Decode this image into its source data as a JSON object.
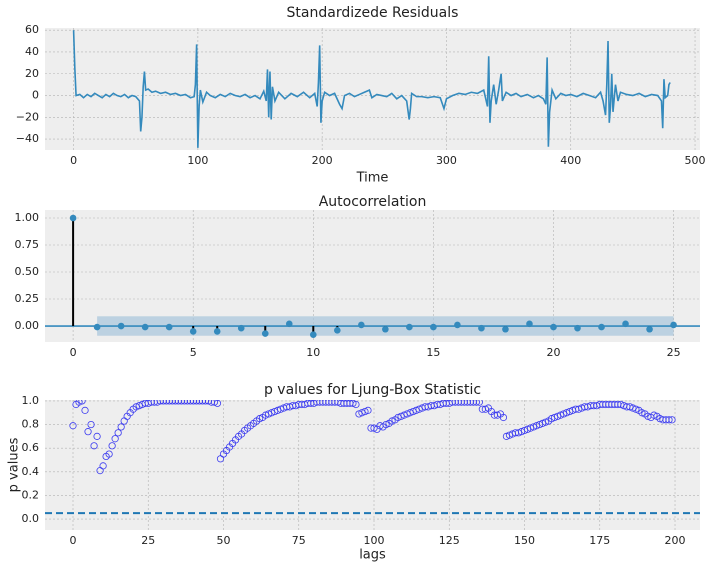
{
  "chart_data": [
    {
      "type": "line",
      "title": "Standardizede Residuals",
      "x_label": "Time",
      "color": "#348ABD",
      "grid": true,
      "xlim": [
        -23,
        504
      ],
      "ylim": [
        -50,
        62
      ],
      "xticks": [
        0,
        100,
        200,
        300,
        400,
        500
      ],
      "yticks": [
        {
          "value": -40,
          "label": "−40"
        },
        {
          "value": -20,
          "label": "−20"
        },
        0,
        20,
        40,
        60
      ],
      "x": [
        0,
        1,
        2,
        5,
        8,
        11,
        14,
        17,
        20,
        23,
        26,
        29,
        32,
        35,
        38,
        41,
        44,
        47,
        50,
        53,
        54,
        55,
        56,
        57,
        58,
        60,
        63,
        66,
        70,
        74,
        78,
        82,
        86,
        90,
        94,
        97,
        98,
        99,
        100,
        101,
        102,
        104,
        107,
        110,
        114,
        118,
        122,
        126,
        130,
        134,
        138,
        142,
        146,
        150,
        153,
        155,
        156,
        157,
        158,
        159,
        160,
        162,
        165,
        170,
        175,
        180,
        185,
        190,
        194,
        196,
        197,
        198,
        199,
        200,
        202,
        206,
        210,
        214,
        216,
        218,
        222,
        226,
        230,
        234,
        238,
        240,
        244,
        248,
        252,
        256,
        260,
        264,
        268,
        270,
        271,
        272,
        276,
        280,
        285,
        290,
        295,
        298,
        300,
        305,
        310,
        315,
        320,
        325,
        330,
        333,
        334,
        335,
        336,
        338,
        340,
        342,
        344,
        345,
        348,
        352,
        356,
        360,
        365,
        370,
        374,
        378,
        380,
        381,
        382,
        383,
        385,
        388,
        392,
        396,
        400,
        405,
        410,
        415,
        420,
        424,
        426,
        428,
        429,
        430,
        431,
        432,
        433,
        434,
        436,
        438,
        440,
        445,
        450,
        455,
        460,
        465,
        470,
        473,
        474,
        475,
        476,
        478,
        479,
        480
      ],
      "values": [
        60,
        25,
        0,
        1,
        -2,
        1,
        -1,
        2,
        0,
        -2,
        1,
        -1,
        2,
        0,
        -1,
        1,
        -2,
        0,
        -1,
        -5,
        -33,
        -20,
        8,
        22,
        5,
        6,
        3,
        4,
        2,
        3,
        1,
        2,
        0,
        1,
        -2,
        -1,
        10,
        47,
        -48,
        -10,
        5,
        -6,
        3,
        0,
        -2,
        1,
        -1,
        2,
        0,
        -1,
        1,
        -2,
        0,
        -3,
        4,
        -5,
        24,
        -20,
        22,
        -22,
        8,
        -5,
        3,
        -3,
        2,
        -1,
        3,
        -2,
        2,
        -10,
        12,
        46,
        -25,
        -5,
        3,
        0,
        2,
        -8,
        -12,
        0,
        2,
        -1,
        1,
        3,
        5,
        -2,
        1,
        0,
        -1,
        2,
        -3,
        0,
        -5,
        -22,
        -12,
        2,
        -1,
        -1,
        -2,
        -1,
        -2,
        -12,
        -3,
        0,
        2,
        1,
        3,
        2,
        5,
        -10,
        36,
        -25,
        -5,
        10,
        -8,
        5,
        20,
        -5,
        3,
        0,
        2,
        -1,
        1,
        -2,
        0,
        -3,
        -8,
        35,
        -47,
        -15,
        5,
        -3,
        2,
        0,
        1,
        -1,
        2,
        0,
        -2,
        3,
        -5,
        -18,
        10,
        50,
        -25,
        -10,
        20,
        -15,
        10,
        -5,
        3,
        1,
        0,
        2,
        -1,
        1,
        0,
        -5,
        -30,
        15,
        -2,
        0,
        10,
        12
      ]
    },
    {
      "type": "stem",
      "title": "Autocorrelation",
      "color": "#348ABD",
      "stem_color": "#000000",
      "grid": true,
      "xlim": [
        -1.17,
        26.1
      ],
      "ylim": [
        -0.148,
        1.074
      ],
      "xticks": [
        0,
        5,
        10,
        15,
        20,
        25
      ],
      "yticks": [
        {
          "value": 0,
          "label": "0.00"
        },
        {
          "value": 0.25,
          "label": "0.25"
        },
        {
          "value": 0.5,
          "label": "0.50"
        },
        {
          "value": 0.75,
          "label": "0.75"
        },
        {
          "value": 1,
          "label": "1.00"
        }
      ],
      "hline": 0,
      "hline_dashed": false,
      "band": {
        "x": [
          1,
          25
        ],
        "lower": -0.09,
        "upper": 0.09,
        "color": "#a6c5dc"
      },
      "x": [
        0,
        1,
        2,
        3,
        4,
        5,
        6,
        7,
        8,
        9,
        10,
        11,
        12,
        13,
        14,
        15,
        16,
        17,
        18,
        19,
        20,
        21,
        22,
        23,
        24,
        25
      ],
      "values": [
        1,
        -0.01,
        0,
        -0.01,
        -0.01,
        -0.05,
        -0.05,
        -0.02,
        -0.07,
        0.02,
        -0.08,
        -0.04,
        0.01,
        -0.03,
        -0.01,
        -0.01,
        0.01,
        -0.02,
        -0.03,
        0.02,
        -0.01,
        -0.02,
        -0.01,
        0.02,
        -0.03,
        0.01
      ]
    },
    {
      "type": "scatter",
      "title": "p values for Ljung-Box Statistic",
      "x_label": "lags",
      "y_label": "p values",
      "color": "#3b3bf0",
      "grid": true,
      "xlim": [
        -9.3,
        208.3
      ],
      "ylim": [
        -0.093,
        1.008
      ],
      "xticks": [
        0,
        25,
        50,
        75,
        100,
        125,
        150,
        175,
        200
      ],
      "yticks": [
        {
          "value": 0,
          "label": "0.0"
        },
        0.2,
        0.4,
        0.6,
        0.8,
        {
          "value": 1,
          "label": "1.0"
        }
      ],
      "hline": 0.05,
      "hline_dashed": true,
      "hline_color": "#1f77b4",
      "x": [
        0,
        1,
        2,
        3,
        4,
        5,
        6,
        7,
        8,
        9,
        10,
        11,
        12,
        13,
        14,
        15,
        16,
        17,
        18,
        19,
        20,
        21,
        22,
        23,
        24,
        25,
        26,
        27,
        28,
        29,
        30,
        31,
        32,
        33,
        34,
        35,
        36,
        37,
        38,
        39,
        40,
        41,
        42,
        43,
        44,
        45,
        46,
        47,
        48,
        49,
        50,
        51,
        52,
        53,
        54,
        55,
        56,
        57,
        58,
        59,
        60,
        61,
        62,
        63,
        64,
        65,
        66,
        67,
        68,
        69,
        70,
        71,
        72,
        73,
        74,
        75,
        76,
        77,
        78,
        79,
        80,
        81,
        82,
        83,
        84,
        85,
        86,
        87,
        88,
        89,
        90,
        91,
        92,
        93,
        94,
        95,
        96,
        97,
        98,
        99,
        100,
        101,
        102,
        103,
        104,
        105,
        106,
        107,
        108,
        109,
        110,
        111,
        112,
        113,
        114,
        115,
        116,
        117,
        118,
        119,
        120,
        121,
        122,
        123,
        124,
        125,
        126,
        127,
        128,
        129,
        130,
        131,
        132,
        133,
        134,
        135,
        136,
        137,
        138,
        139,
        140,
        141,
        142,
        143,
        144,
        145,
        146,
        147,
        148,
        149,
        150,
        151,
        152,
        153,
        154,
        155,
        156,
        157,
        158,
        159,
        160,
        161,
        162,
        163,
        164,
        165,
        166,
        167,
        168,
        169,
        170,
        171,
        172,
        173,
        174,
        175,
        176,
        177,
        178,
        179,
        180,
        181,
        182,
        183,
        184,
        185,
        186,
        187,
        188,
        189,
        190,
        191,
        192,
        193,
        194,
        195,
        196,
        197,
        198,
        199
      ],
      "values": [
        0.79,
        0.97,
        0.99,
        1.0,
        0.92,
        0.74,
        0.8,
        0.62,
        0.7,
        0.41,
        0.45,
        0.53,
        0.55,
        0.62,
        0.68,
        0.73,
        0.78,
        0.83,
        0.87,
        0.9,
        0.93,
        0.95,
        0.96,
        0.97,
        0.98,
        0.98,
        0.99,
        0.99,
        0.99,
        1.0,
        1.0,
        1.0,
        1.0,
        1.0,
        1.0,
        1.0,
        1.0,
        1.0,
        1.0,
        1.0,
        1.0,
        1.0,
        1.0,
        1.0,
        1.0,
        1.0,
        0.99,
        0.99,
        0.98,
        0.51,
        0.55,
        0.58,
        0.61,
        0.64,
        0.67,
        0.7,
        0.72,
        0.75,
        0.77,
        0.79,
        0.81,
        0.83,
        0.85,
        0.86,
        0.88,
        0.89,
        0.9,
        0.91,
        0.92,
        0.93,
        0.94,
        0.95,
        0.95,
        0.96,
        0.96,
        0.97,
        0.97,
        0.97,
        0.98,
        0.98,
        0.98,
        0.99,
        0.99,
        0.99,
        0.99,
        0.99,
        0.99,
        0.99,
        0.99,
        0.98,
        0.98,
        0.98,
        0.98,
        0.98,
        0.97,
        0.89,
        0.9,
        0.91,
        0.92,
        0.77,
        0.77,
        0.76,
        0.79,
        0.78,
        0.8,
        0.81,
        0.83,
        0.84,
        0.86,
        0.87,
        0.88,
        0.89,
        0.9,
        0.91,
        0.92,
        0.93,
        0.94,
        0.95,
        0.95,
        0.96,
        0.96,
        0.97,
        0.97,
        0.98,
        0.98,
        0.98,
        0.99,
        0.99,
        0.99,
        0.99,
        0.99,
        0.99,
        0.99,
        0.99,
        0.99,
        0.99,
        0.93,
        0.93,
        0.94,
        0.91,
        0.88,
        0.88,
        0.89,
        0.86,
        0.7,
        0.71,
        0.72,
        0.73,
        0.73,
        0.74,
        0.75,
        0.76,
        0.77,
        0.78,
        0.79,
        0.8,
        0.81,
        0.82,
        0.83,
        0.85,
        0.86,
        0.87,
        0.88,
        0.89,
        0.9,
        0.91,
        0.92,
        0.93,
        0.93,
        0.94,
        0.95,
        0.95,
        0.96,
        0.96,
        0.96,
        0.97,
        0.97,
        0.97,
        0.97,
        0.97,
        0.97,
        0.97,
        0.97,
        0.96,
        0.95,
        0.95,
        0.94,
        0.93,
        0.92,
        0.9,
        0.89,
        0.87,
        0.86,
        0.88,
        0.87,
        0.85,
        0.84,
        0.84,
        0.84,
        0.84
      ]
    }
  ]
}
